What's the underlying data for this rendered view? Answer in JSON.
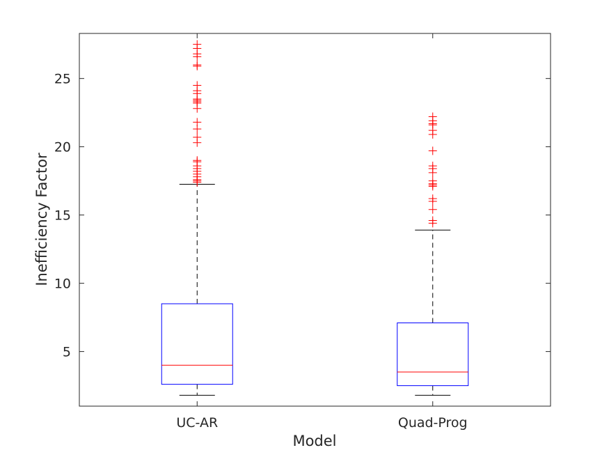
{
  "chart_data": {
    "type": "box",
    "xlabel": "Model",
    "ylabel": "Inefficiency Factor",
    "ylim": [
      1.0,
      28.3
    ],
    "yticks": [
      5,
      10,
      15,
      20,
      25
    ],
    "grid": false,
    "colors": {
      "box": "#0000ff",
      "median": "#ff0000",
      "whisker": "#000000",
      "outlier": "#ff0000",
      "axis": "#262626"
    },
    "categories": [
      "UC-AR",
      "Quad-Prog"
    ],
    "boxes": [
      {
        "name": "UC-AR",
        "whisker_low": 1.8,
        "q1": 2.6,
        "median": 4.0,
        "q3": 8.5,
        "whisker_high": 17.25,
        "outliers": [
          17.4,
          17.5,
          17.6,
          17.8,
          18.0,
          18.2,
          18.4,
          18.6,
          18.9,
          19.0,
          20.3,
          20.7,
          21.3,
          21.8,
          22.8,
          23.2,
          23.3,
          23.4,
          23.5,
          23.9,
          24.1,
          24.5,
          25.9,
          26.0,
          26.6,
          26.8,
          27.2,
          27.5
        ]
      },
      {
        "name": "Quad-Prog",
        "whisker_low": 1.8,
        "q1": 2.5,
        "median": 3.5,
        "q3": 7.1,
        "whisker_high": 13.9,
        "outliers": [
          14.4,
          14.6,
          15.4,
          16.0,
          16.2,
          17.1,
          17.2,
          17.3,
          17.5,
          18.1,
          18.4,
          18.6,
          19.7,
          20.9,
          21.2,
          21.6,
          21.7,
          21.9,
          22.2
        ]
      }
    ]
  }
}
